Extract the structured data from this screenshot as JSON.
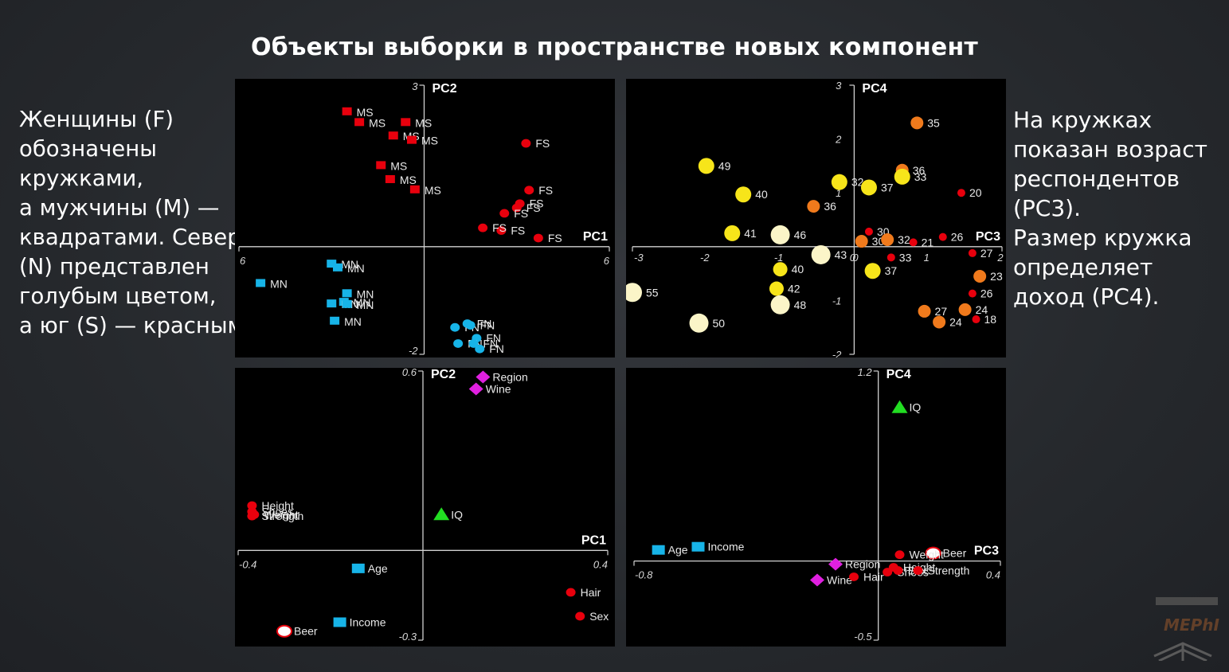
{
  "title": "Объекты выборки в пространстве новых компонент",
  "left_text": [
    "Женщины (F)",
    "обозначены",
    "кружками,",
    "а мужчины (M) —",
    "квадратами. Север",
    "(N) представлен",
    "голубым цветом,",
    "а юг (S) — красным."
  ],
  "right_text": [
    "На кружках",
    "показан возраст",
    "респондентов",
    "(PC3).",
    "Размер кружка",
    "определяет",
    "доход (PC4)."
  ],
  "logo_text": "MEPhI",
  "colors": {
    "red": "#e8000d",
    "cyan": "#17b4e8",
    "green": "#22dd22",
    "magenta": "#e020e0",
    "yellow": "#f7e51a",
    "orange": "#f07a1c",
    "pale": "#fbf5c8",
    "white": "#ffffff"
  },
  "chart_data": [
    {
      "type": "scatter",
      "xlabel": "PC1",
      "ylabel": "PC2",
      "xlim": [
        -6,
        6
      ],
      "ylim": [
        -2,
        3
      ],
      "x_tick_labels": [
        "6",
        "6"
      ],
      "y_tick_labels": [
        "3",
        "-2"
      ],
      "points": [
        {
          "x": -2.5,
          "y": 2.5,
          "label": "MS",
          "shape": "square",
          "color": "red"
        },
        {
          "x": -2.1,
          "y": 2.3,
          "label": "MS",
          "shape": "square",
          "color": "red"
        },
        {
          "x": -0.6,
          "y": 2.3,
          "label": "MS",
          "shape": "square",
          "color": "red"
        },
        {
          "x": -1.0,
          "y": 2.05,
          "label": "MS",
          "shape": "square",
          "color": "red"
        },
        {
          "x": -0.4,
          "y": 1.97,
          "label": "MS",
          "shape": "square",
          "color": "red"
        },
        {
          "x": -1.4,
          "y": 1.5,
          "label": "MS",
          "shape": "square",
          "color": "red"
        },
        {
          "x": -1.1,
          "y": 1.24,
          "label": "MS",
          "shape": "square",
          "color": "red"
        },
        {
          "x": -0.3,
          "y": 1.05,
          "label": "MS",
          "shape": "square",
          "color": "red"
        },
        {
          "x": 3.3,
          "y": 1.92,
          "label": "FS",
          "shape": "circle",
          "color": "red"
        },
        {
          "x": 3.4,
          "y": 1.05,
          "label": "FS",
          "shape": "circle",
          "color": "red"
        },
        {
          "x": 3.1,
          "y": 0.8,
          "label": "FS",
          "shape": "circle",
          "color": "red"
        },
        {
          "x": 3.0,
          "y": 0.72,
          "label": "FS",
          "shape": "circle",
          "color": "red"
        },
        {
          "x": 2.6,
          "y": 0.62,
          "label": "FS",
          "shape": "circle",
          "color": "red"
        },
        {
          "x": 2.5,
          "y": 0.3,
          "label": "FS",
          "shape": "circle",
          "color": "red"
        },
        {
          "x": 1.9,
          "y": 0.35,
          "label": "FS",
          "shape": "circle",
          "color": "red"
        },
        {
          "x": 3.7,
          "y": 0.16,
          "label": "FS",
          "shape": "circle",
          "color": "red"
        },
        {
          "x": -5.3,
          "y": -0.69,
          "label": "MN",
          "shape": "square",
          "color": "cyan"
        },
        {
          "x": -3.0,
          "y": -0.33,
          "label": "MN",
          "shape": "square",
          "color": "cyan"
        },
        {
          "x": -2.8,
          "y": -0.4,
          "label": "MN",
          "shape": "square",
          "color": "cyan"
        },
        {
          "x": -2.5,
          "y": -0.88,
          "label": "MN",
          "shape": "square",
          "color": "cyan"
        },
        {
          "x": -2.6,
          "y": -1.04,
          "label": "MN",
          "shape": "square",
          "color": "cyan"
        },
        {
          "x": -3.0,
          "y": -1.07,
          "label": "MN",
          "shape": "square",
          "color": "cyan"
        },
        {
          "x": -2.5,
          "y": -1.08,
          "label": "MN",
          "shape": "square",
          "color": "cyan"
        },
        {
          "x": -2.9,
          "y": -1.39,
          "label": "MN",
          "shape": "square",
          "color": "cyan"
        },
        {
          "x": 1.0,
          "y": -1.5,
          "label": "FN",
          "shape": "circle",
          "color": "cyan"
        },
        {
          "x": 1.4,
          "y": -1.43,
          "label": "FN",
          "shape": "circle",
          "color": "cyan"
        },
        {
          "x": 1.5,
          "y": -1.46,
          "label": "FN",
          "shape": "circle",
          "color": "cyan"
        },
        {
          "x": 1.7,
          "y": -1.7,
          "label": "FN",
          "shape": "circle",
          "color": "cyan"
        },
        {
          "x": 1.1,
          "y": -1.8,
          "label": "FN",
          "shape": "circle",
          "color": "cyan"
        },
        {
          "x": 1.6,
          "y": -1.8,
          "label": "FN",
          "shape": "circle",
          "color": "cyan"
        },
        {
          "x": 1.8,
          "y": -1.9,
          "label": "FN",
          "shape": "circle",
          "color": "cyan"
        }
      ]
    },
    {
      "type": "scatter",
      "xlabel": "PC3",
      "ylabel": "PC4",
      "xlim": [
        -3,
        2
      ],
      "ylim": [
        -2,
        3
      ],
      "x_tick_labels": [
        "-3",
        "-2",
        "-1",
        "0",
        "1",
        "2"
      ],
      "x_ticks": [
        -3,
        -2,
        -1,
        0,
        1,
        2
      ],
      "y_tick_labels": [
        "3",
        "2",
        "1",
        "0",
        "-1",
        "-2"
      ],
      "y_ticks": [
        3,
        2,
        1,
        0,
        -1,
        -2
      ],
      "points": [
        {
          "x": 0.85,
          "y": 2.3,
          "label": "35",
          "color": "orange",
          "size": 8
        },
        {
          "x": -2.0,
          "y": 1.5,
          "label": "49",
          "color": "yellow",
          "size": 10
        },
        {
          "x": 0.65,
          "y": 1.42,
          "label": "36",
          "color": "orange",
          "size": 8
        },
        {
          "x": 0.65,
          "y": 1.3,
          "label": "33",
          "color": "yellow",
          "size": 10
        },
        {
          "x": -0.2,
          "y": 1.2,
          "label": "32",
          "color": "yellow",
          "size": 10
        },
        {
          "x": 0.2,
          "y": 1.1,
          "label": "37",
          "color": "yellow",
          "size": 10
        },
        {
          "x": -1.5,
          "y": 0.97,
          "label": "40",
          "color": "yellow",
          "size": 10
        },
        {
          "x": 1.45,
          "y": 1.0,
          "label": "20",
          "color": "red",
          "size": 5
        },
        {
          "x": -0.55,
          "y": 0.75,
          "label": "36",
          "color": "orange",
          "size": 8
        },
        {
          "x": -1.65,
          "y": 0.25,
          "label": "41",
          "color": "yellow",
          "size": 10
        },
        {
          "x": -1.0,
          "y": 0.22,
          "label": "46",
          "color": "pale",
          "size": 12
        },
        {
          "x": 0.2,
          "y": 0.28,
          "label": "30",
          "color": "red",
          "size": 5
        },
        {
          "x": 0.1,
          "y": 0.1,
          "label": "30",
          "color": "orange",
          "size": 8
        },
        {
          "x": 0.45,
          "y": 0.13,
          "label": "32",
          "color": "orange",
          "size": 8
        },
        {
          "x": 0.8,
          "y": 0.08,
          "label": "21",
          "color": "red",
          "size": 5
        },
        {
          "x": 1.2,
          "y": 0.18,
          "label": "26",
          "color": "red",
          "size": 5
        },
        {
          "x": 1.6,
          "y": -0.12,
          "label": "27",
          "color": "red",
          "size": 5
        },
        {
          "x": -0.45,
          "y": -0.15,
          "label": "43",
          "color": "pale",
          "size": 12
        },
        {
          "x": 0.5,
          "y": -0.2,
          "label": "33",
          "color": "red",
          "size": 5
        },
        {
          "x": -1.0,
          "y": -0.42,
          "label": "40",
          "color": "yellow",
          "size": 9
        },
        {
          "x": 0.25,
          "y": -0.45,
          "label": "37",
          "color": "yellow",
          "size": 10
        },
        {
          "x": 1.7,
          "y": -0.55,
          "label": "23",
          "color": "orange",
          "size": 8
        },
        {
          "x": -1.05,
          "y": -0.78,
          "label": "42",
          "color": "yellow",
          "size": 9
        },
        {
          "x": -3.0,
          "y": -0.85,
          "label": "55",
          "color": "pale",
          "size": 12
        },
        {
          "x": 1.6,
          "y": -0.87,
          "label": "26",
          "color": "red",
          "size": 5
        },
        {
          "x": -1.0,
          "y": -1.08,
          "label": "48",
          "color": "pale",
          "size": 12
        },
        {
          "x": 0.95,
          "y": -1.2,
          "label": "27",
          "color": "orange",
          "size": 8
        },
        {
          "x": 1.5,
          "y": -1.17,
          "label": "24",
          "color": "orange",
          "size": 8
        },
        {
          "x": 1.15,
          "y": -1.4,
          "label": "24",
          "color": "orange",
          "size": 8
        },
        {
          "x": 1.65,
          "y": -1.35,
          "label": "18",
          "color": "red",
          "size": 5
        },
        {
          "x": -2.1,
          "y": -1.42,
          "label": "50",
          "color": "pale",
          "size": 12
        }
      ]
    },
    {
      "type": "scatter",
      "xlabel": "PC1",
      "ylabel": "PC2",
      "xlim": [
        -0.4,
        0.4
      ],
      "ylim": [
        -0.3,
        0.6
      ],
      "x_tick_labels": [
        "-0.4",
        "0.4"
      ],
      "y_tick_labels": [
        "0.6",
        "-0.3"
      ],
      "points": [
        {
          "x": 0.13,
          "y": 0.58,
          "label": "Region",
          "shape": "diamond",
          "color": "magenta"
        },
        {
          "x": 0.115,
          "y": 0.54,
          "label": "Wine",
          "shape": "diamond",
          "color": "magenta"
        },
        {
          "x": -0.37,
          "y": 0.15,
          "label": "Height",
          "shape": "circle",
          "color": "red"
        },
        {
          "x": -0.37,
          "y": 0.13,
          "label": "Shoes",
          "shape": "circle",
          "color": "red"
        },
        {
          "x": -0.365,
          "y": 0.12,
          "label": "Weight",
          "shape": "circle",
          "color": "red"
        },
        {
          "x": -0.37,
          "y": 0.115,
          "label": "Strength",
          "shape": "circle",
          "color": "red"
        },
        {
          "x": 0.04,
          "y": 0.12,
          "label": "IQ",
          "shape": "triangle",
          "color": "green"
        },
        {
          "x": -0.14,
          "y": -0.06,
          "label": "Age",
          "shape": "square",
          "color": "cyan"
        },
        {
          "x": -0.18,
          "y": -0.24,
          "label": "Income",
          "shape": "square",
          "color": "cyan"
        },
        {
          "x": -0.3,
          "y": -0.27,
          "label": "Beer",
          "shape": "ring",
          "color": "white"
        },
        {
          "x": 0.32,
          "y": -0.14,
          "label": "Hair",
          "shape": "circle",
          "color": "red"
        },
        {
          "x": 0.34,
          "y": -0.22,
          "label": "Sex",
          "shape": "circle",
          "color": "red"
        }
      ]
    },
    {
      "type": "scatter",
      "xlabel": "PC3",
      "ylabel": "PC4",
      "xlim": [
        -0.8,
        0.4
      ],
      "ylim": [
        -0.5,
        1.2
      ],
      "x_tick_labels": [
        "-0.8",
        "0.4"
      ],
      "y_tick_labels": [
        "1.2",
        "-0.5"
      ],
      "points": [
        {
          "x": 0.07,
          "y": 0.97,
          "label": "IQ",
          "shape": "triangle",
          "color": "green"
        },
        {
          "x": -0.72,
          "y": 0.07,
          "label": "Age",
          "shape": "square",
          "color": "cyan"
        },
        {
          "x": -0.59,
          "y": 0.09,
          "label": "Income",
          "shape": "square",
          "color": "cyan"
        },
        {
          "x": 0.18,
          "y": 0.05,
          "label": "Beer",
          "shape": "ring",
          "color": "white"
        },
        {
          "x": 0.07,
          "y": 0.04,
          "label": "Weight",
          "shape": "circle",
          "color": "red"
        },
        {
          "x": -0.14,
          "y": -0.02,
          "label": "Region",
          "shape": "diamond",
          "color": "magenta"
        },
        {
          "x": -0.2,
          "y": -0.12,
          "label": "Wine",
          "shape": "diamond",
          "color": "magenta"
        },
        {
          "x": 0.05,
          "y": -0.04,
          "label": "Height",
          "shape": "circle",
          "color": "red"
        },
        {
          "x": -0.08,
          "y": -0.1,
          "label": "Hair",
          "shape": "circle",
          "color": "red"
        },
        {
          "x": 0.03,
          "y": -0.07,
          "label": "Shoes",
          "shape": "circle",
          "color": "red"
        },
        {
          "x": 0.065,
          "y": -0.06,
          "label": "Sex",
          "shape": "circle",
          "color": "red"
        },
        {
          "x": 0.13,
          "y": -0.06,
          "label": "Strength",
          "shape": "circle",
          "color": "red"
        }
      ]
    }
  ]
}
